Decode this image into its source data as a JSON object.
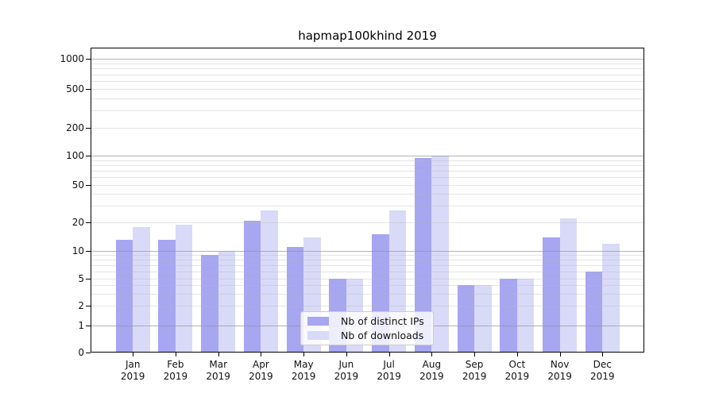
{
  "figure": {
    "title": "hapmap100khind 2019"
  },
  "chart_data": {
    "type": "bar",
    "title": "hapmap100khind 2019",
    "categories": [
      "Jan",
      "Feb",
      "Mar",
      "Apr",
      "May",
      "Jun",
      "Jul",
      "Aug",
      "Sep",
      "Oct",
      "Nov",
      "Dec"
    ],
    "category_year": "2019",
    "series": [
      {
        "name": "Nb of distinct IPs",
        "color": "#a6a6f1",
        "values": [
          13,
          13,
          9,
          21,
          11,
          5,
          15,
          95,
          4,
          5,
          14,
          6
        ]
      },
      {
        "name": "Nb of downloads",
        "color": "#d9d9f8",
        "values": [
          18,
          19,
          10,
          27,
          14,
          5,
          27,
          100,
          4,
          5,
          22,
          12
        ]
      }
    ],
    "xlabel": "",
    "ylabel": "",
    "yscale": "log-like with zero baseline",
    "yticks": [
      0,
      1,
      2,
      5,
      10,
      20,
      50,
      100,
      200,
      500,
      1000
    ],
    "minor_grid_values": [
      3,
      4,
      6,
      7,
      8,
      9,
      30,
      40,
      60,
      70,
      80,
      90,
      300,
      400,
      600,
      700,
      800,
      900
    ],
    "major_grid_values": [
      1,
      10,
      100,
      1000
    ],
    "ylim": [
      0,
      1300
    ],
    "grid": {
      "axis": "y",
      "major": true,
      "minor": true
    },
    "legend": {
      "position": "inside bottom-center",
      "entries": [
        "Nb of distinct IPs",
        "Nb of downloads"
      ]
    },
    "colors": {
      "distinct_ips": "#a6a6f1",
      "downloads": "#d9d9f8",
      "grid_major": "#b0b0b0",
      "grid_minor": "#e4e4e4",
      "axis": "#000000"
    }
  }
}
